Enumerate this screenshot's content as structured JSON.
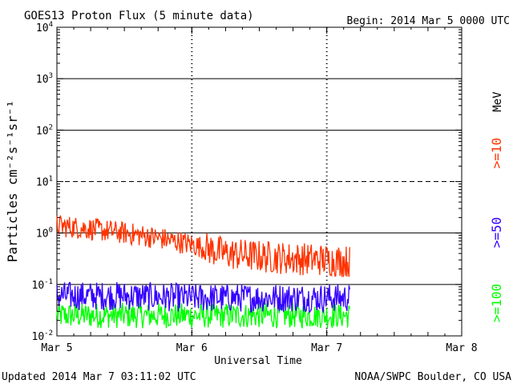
{
  "header": {
    "title": "GOES13 Proton Flux (5 minute data)",
    "begin": "Begin: 2014 Mar 5 0000 UTC"
  },
  "footer": {
    "updated": "Updated 2014 Mar  7 03:11:02 UTC",
    "source": "NOAA/SWPC Boulder, CO USA"
  },
  "chart_data": {
    "type": "line",
    "title": "GOES13 Proton Flux (5 minute data)",
    "xlabel": "Universal Time",
    "ylabel": "Particles cm⁻²s⁻¹sr⁻¹",
    "y_scale": "log",
    "ylim": [
      0.01,
      10000
    ],
    "y_ticks": [
      {
        "value": 0.01,
        "base": "10",
        "exp": "-2"
      },
      {
        "value": 0.1,
        "base": "10",
        "exp": "-1"
      },
      {
        "value": 1,
        "base": "10",
        "exp": "0"
      },
      {
        "value": 10,
        "base": "10",
        "exp": "1"
      },
      {
        "value": 100,
        "base": "10",
        "exp": "2"
      },
      {
        "value": 1000,
        "base": "10",
        "exp": "3"
      },
      {
        "value": 10000,
        "base": "10",
        "exp": "4"
      }
    ],
    "x_ticks": [
      "Mar 5",
      "Mar 6",
      "Mar 7",
      "Mar 8"
    ],
    "xlim_days": [
      0,
      3
    ],
    "grid": {
      "solid_levels": [
        0.1,
        1,
        100,
        1000
      ],
      "dashed_levels": [
        10
      ]
    },
    "legend": {
      "placement": "right",
      "unit": "MeV",
      "entries": [
        {
          "label": ">=10",
          "color": "#ff3300"
        },
        {
          "label": ">=50",
          "color": "#3300ff"
        },
        {
          "label": ">=100",
          "color": "#00ff00"
        }
      ]
    },
    "series": [
      {
        "name": ">=10",
        "color": "#ff3300",
        "x_days": [
          0,
          0.25,
          0.5,
          0.75,
          1.0,
          1.25,
          1.5,
          1.75,
          2.0,
          2.17
        ],
        "values": [
          1.4,
          1.2,
          1.0,
          0.8,
          0.6,
          0.4,
          0.35,
          0.32,
          0.3,
          0.28
        ]
      },
      {
        "name": ">=50",
        "color": "#3300ff",
        "x_days": [
          0,
          0.5,
          1.0,
          1.5,
          2.0,
          2.17
        ],
        "values": [
          0.06,
          0.06,
          0.055,
          0.055,
          0.055,
          0.055
        ]
      },
      {
        "name": ">=100",
        "color": "#00ff00",
        "x_days": [
          0,
          0.5,
          1.0,
          1.5,
          2.0,
          2.17
        ],
        "values": [
          0.025,
          0.025,
          0.025,
          0.025,
          0.025,
          0.025
        ]
      }
    ]
  }
}
